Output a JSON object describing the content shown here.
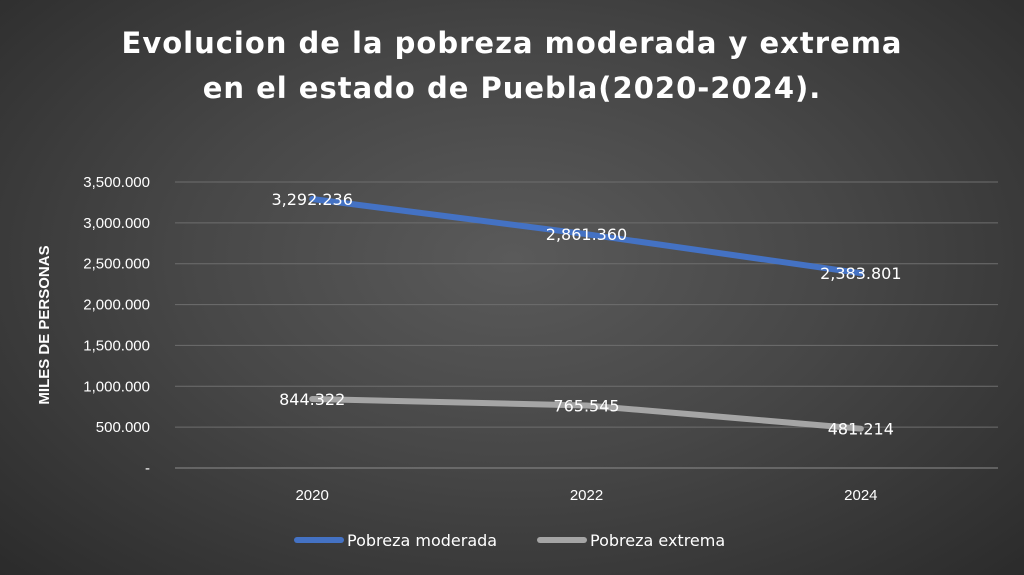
{
  "chart_data": {
    "type": "line",
    "title": "Evolucion de la pobreza moderada y extrema en el estado de Puebla(2020-2024).",
    "title_lines": [
      "Evolucion de la pobreza moderada y extrema",
      "en el estado de Puebla(2020-2024)."
    ],
    "xlabel": "",
    "ylabel": "MILES DE PERSONAS",
    "categories": [
      "2020",
      "2022",
      "2024"
    ],
    "ylim": [
      0,
      3500
    ],
    "yticks": [
      0,
      500,
      1000,
      1500,
      2000,
      2500,
      3000,
      3500
    ],
    "ytick_labels": [
      "-",
      "500.000",
      "1,000.000",
      "1,500.000",
      "2,000.000",
      "2,500.000",
      "3,000.000",
      "3,500.000"
    ],
    "grid": true,
    "legend_position": "bottom",
    "series": [
      {
        "name": "Pobreza moderada",
        "color": "#4472C4",
        "values": [
          3292.236,
          2861.36,
          2383.801
        ],
        "labels": [
          "3,292.236",
          "2,861.360",
          "2,383.801"
        ]
      },
      {
        "name": "Pobreza extrema",
        "color": "#A5A5A5",
        "values": [
          844.322,
          765.545,
          481.214
        ],
        "labels": [
          "844.322",
          "765.545",
          "481.214"
        ]
      }
    ]
  }
}
